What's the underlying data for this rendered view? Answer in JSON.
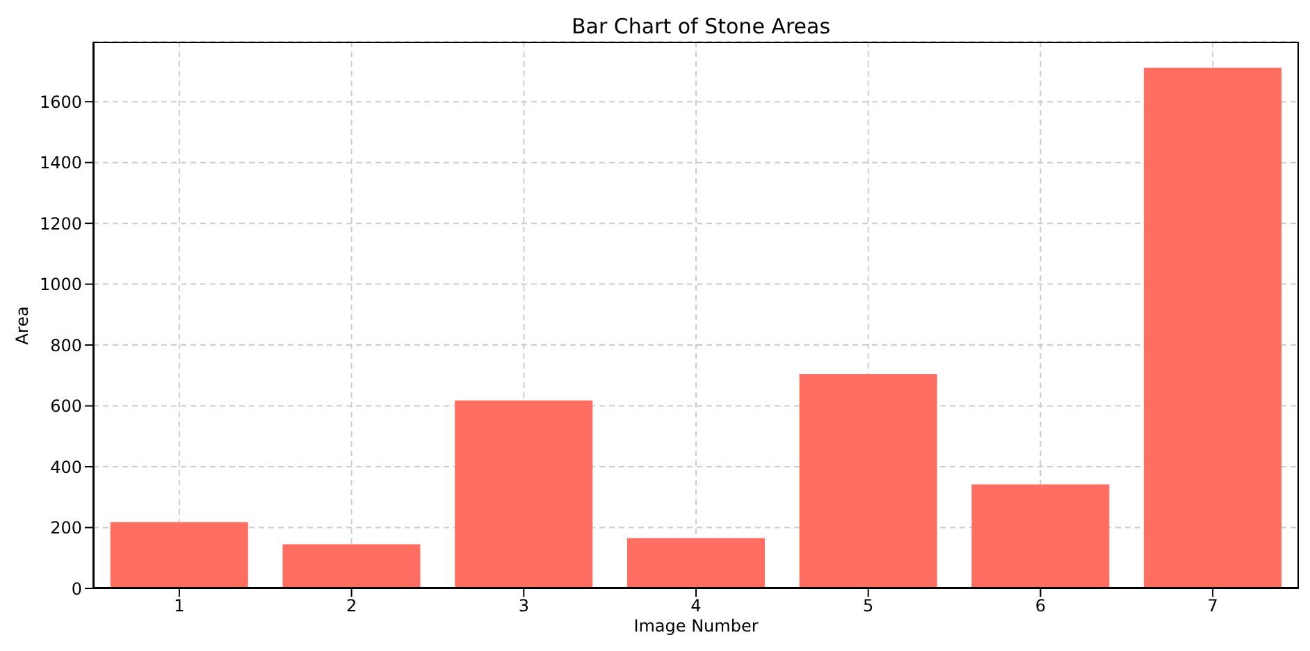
{
  "chart_data": {
    "type": "bar",
    "title": "Bar Chart of Stone Areas",
    "xlabel": "Image Number",
    "ylabel": "Area",
    "categories": [
      "1",
      "2",
      "3",
      "4",
      "5",
      "6",
      "7"
    ],
    "values": [
      218,
      145,
      618,
      165,
      704,
      342,
      1711
    ],
    "color": "#ff6e61",
    "ylim": [
      0,
      1797
    ],
    "yticks": [
      0,
      200,
      400,
      600,
      800,
      1000,
      1200,
      1400,
      1600
    ],
    "grid": true
  }
}
